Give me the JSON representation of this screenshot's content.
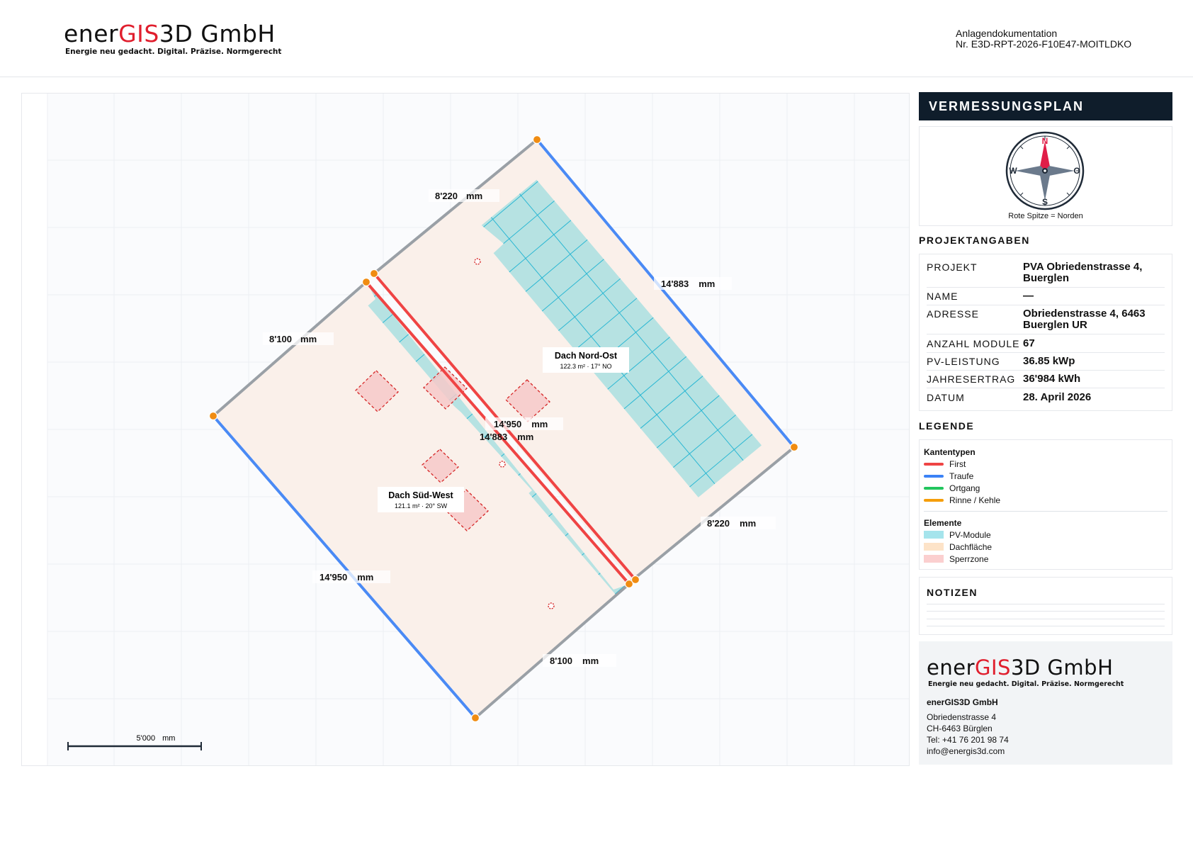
{
  "header": {
    "logo": {
      "part1": "ener",
      "part2": "GIS",
      "part3": "3D GmbH"
    },
    "tagline": "Energie neu gedacht. Digital. Präzise. Normgerecht",
    "doc_type": "Anlagendokumentation",
    "doc_number": "Nr. E3D-RPT-2026-F10E47-MOITLDKO"
  },
  "plan": {
    "dimensions": {
      "d1": "8'220",
      "d2": "14'883",
      "d3": "8'100",
      "d4": "14'950",
      "d5": "14'883",
      "d6": "8'220",
      "d7": "14'950",
      "d8": "8'100",
      "unit": "mm"
    },
    "roofs": [
      {
        "name": "Dach Nord-Ost",
        "info": "122.3 m² · 17° NO"
      },
      {
        "name": "Dach Süd-West",
        "info": "121.1 m² · 20° SW"
      }
    ],
    "scalebar": {
      "value": "5'000",
      "unit": "mm"
    }
  },
  "sidebar": {
    "title": "VERMESSUNGSPLAN",
    "compass": {
      "n": "N",
      "s": "S",
      "w": "W",
      "o": "O",
      "caption": "Rote Spitze = Norden"
    },
    "project_heading": "PROJEKTANGABEN",
    "project": [
      {
        "label": "PROJEKT",
        "value": "PVA Obriedenstrasse 4, Buerglen"
      },
      {
        "label": "NAME",
        "value": "—"
      },
      {
        "label": "ADRESSE",
        "value": "Obriedenstrasse 4, 6463 Buerglen UR"
      },
      {
        "label": "ANZAHL MODULE",
        "value": "67"
      },
      {
        "label": "PV-LEISTUNG",
        "value": "36.85 kWp"
      },
      {
        "label": "JAHRESERTRAG",
        "value": "36'984 kWh"
      },
      {
        "label": "DATUM",
        "value": "28. April 2026"
      }
    ],
    "legend_heading": "LEGENDE",
    "legend": {
      "edge_heading": "Kantentypen",
      "edges": [
        {
          "label": "First",
          "color": "#ef4444"
        },
        {
          "label": "Traufe",
          "color": "#3b82f6"
        },
        {
          "label": "Ortgang",
          "color": "#22c55e"
        },
        {
          "label": "Rinne / Kehle",
          "color": "#f59e0b"
        }
      ],
      "element_heading": "Elemente",
      "elements": [
        {
          "label": "PV-Module",
          "color": "#a5e4ec"
        },
        {
          "label": "Dachfläche",
          "color": "#fde3c8"
        },
        {
          "label": "Sperrzone",
          "color": "#fbcfcf"
        }
      ]
    },
    "notes_heading": "NOTIZEN",
    "company": {
      "name": "enerGIS3D GmbH",
      "street": "Obriedenstrasse 4",
      "city": "CH-6463 Bürglen",
      "tel": "Tel: +41 76 201 98 74",
      "email": "info@energis3d.com"
    }
  }
}
